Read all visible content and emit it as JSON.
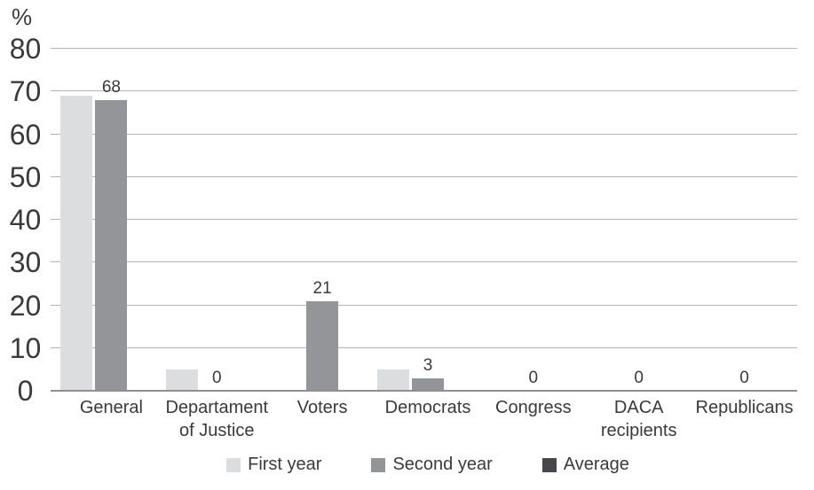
{
  "chart_data": {
    "type": "bar",
    "title": "",
    "ylabel": "%",
    "xlabel": "",
    "ylim": [
      0,
      80
    ],
    "yticks": [
      0,
      10,
      20,
      30,
      40,
      50,
      60,
      70,
      80
    ],
    "grid": true,
    "legend_position": "bottom",
    "categories": [
      "General",
      "Departament\nof Justice",
      "Voters",
      "Democrats",
      "Congress",
      "DACA\nrecipients",
      "Republicans"
    ],
    "series": [
      {
        "name": "First year",
        "color": "#dcddde",
        "values": [
          69,
          5,
          0,
          5,
          0,
          0,
          0
        ],
        "labels_shown": false
      },
      {
        "name": "Second year",
        "color": "#939598",
        "values": [
          68,
          0,
          21,
          3,
          0,
          0,
          0
        ],
        "labels_shown": true,
        "data_labels": [
          "68",
          "0",
          "21",
          "3",
          "0",
          "0",
          "0"
        ]
      },
      {
        "name": "Average",
        "color": "#47484b",
        "values": [
          0,
          0,
          0,
          0,
          0,
          0,
          0
        ],
        "labels_shown": false
      }
    ],
    "colors": {
      "text": "#3a3a3a",
      "gridline": "#b1b3b5",
      "axis_line": "#8d8f92",
      "background": "#ffffff"
    }
  }
}
